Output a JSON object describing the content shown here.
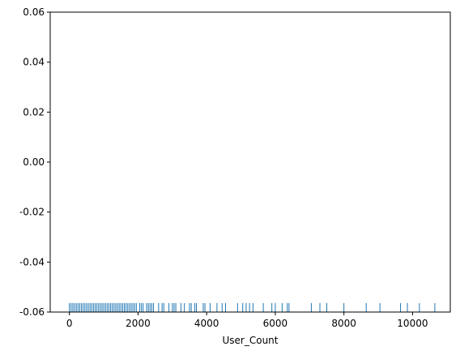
{
  "chart_data": {
    "type": "rug",
    "xlabel": "User_Count",
    "color": "#1f77b4",
    "x": [
      0,
      50,
      100,
      150,
      200,
      250,
      300,
      350,
      400,
      450,
      500,
      550,
      600,
      650,
      700,
      750,
      800,
      850,
      900,
      950,
      1000,
      1050,
      1100,
      1150,
      1200,
      1250,
      1300,
      1350,
      1400,
      1450,
      1500,
      1550,
      1600,
      1650,
      1700,
      1750,
      1800,
      1850,
      1900,
      1950,
      2050,
      2100,
      2150,
      2250,
      2300,
      2350,
      2400,
      2450,
      2600,
      2700,
      2750,
      2900,
      3000,
      3050,
      3100,
      3250,
      3350,
      3500,
      3550,
      3650,
      3700,
      3900,
      3950,
      4100,
      4300,
      4450,
      4550,
      4900,
      5050,
      5150,
      5250,
      5350,
      5650,
      5900,
      6000,
      6200,
      6350,
      6400,
      7050,
      7300,
      7500,
      8000,
      8650,
      9050,
      9650,
      9850,
      10200,
      10650
    ],
    "xlim": [
      -560,
      11100
    ],
    "xticks": [
      0,
      2000,
      4000,
      6000,
      8000,
      10000
    ],
    "ylim": [
      -0.06,
      0.06
    ],
    "yticks": [
      -0.06,
      -0.04,
      -0.02,
      {
        "value": 0,
        "label": "0.00"
      },
      0.02,
      0.04,
      0.06
    ]
  }
}
